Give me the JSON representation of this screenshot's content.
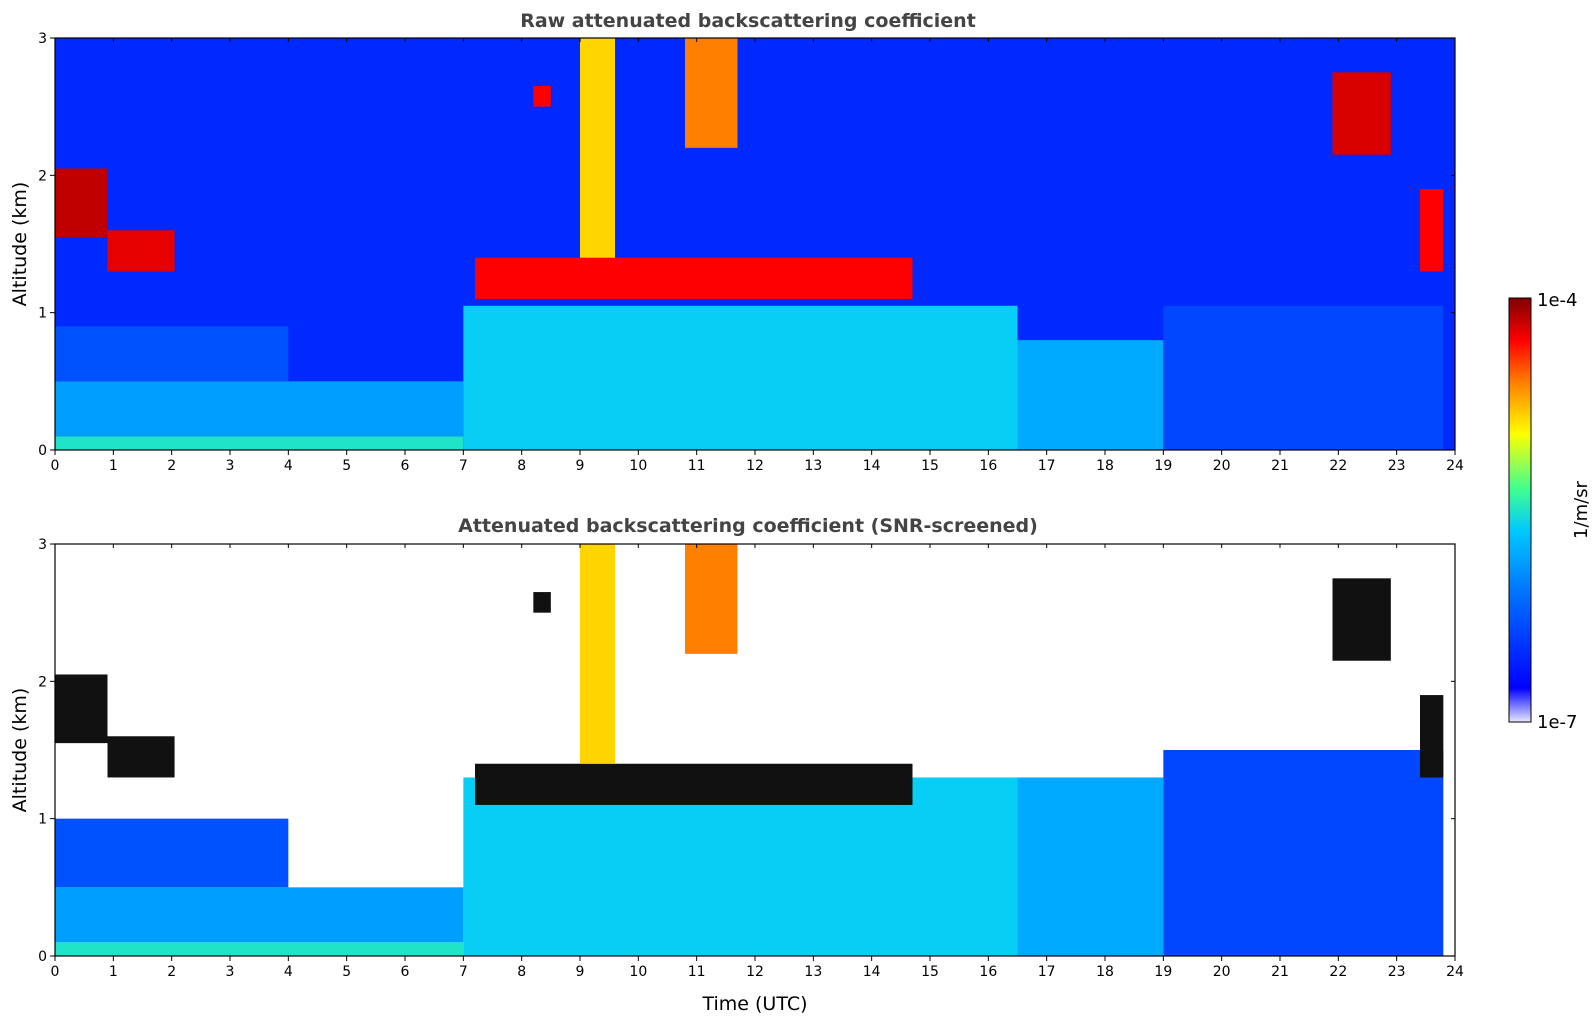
{
  "chart_data": [
    {
      "type": "heatmap",
      "title": "Raw attenuated backscattering coefficient",
      "xlabel": "",
      "ylabel": "Altitude (km)",
      "xlim": [
        0,
        24
      ],
      "ylim": [
        0,
        3
      ],
      "xticks": [
        "0",
        "1",
        "2",
        "3",
        "4",
        "5",
        "6",
        "7",
        "8",
        "9",
        "10",
        "11",
        "12",
        "13",
        "14",
        "15",
        "16",
        "17",
        "18",
        "19",
        "20",
        "21",
        "22",
        "23",
        "24"
      ],
      "yticks": [
        "0",
        "1",
        "2",
        "3"
      ],
      "layers": [
        {
          "x0": 0.0,
          "x1": 7.0,
          "y0": 0.0,
          "y1": 0.1,
          "level": 0.5
        },
        {
          "x0": 0.0,
          "x1": 7.0,
          "y0": 0.1,
          "y1": 0.5,
          "level": 0.38
        },
        {
          "x0": 0.0,
          "x1": 4.0,
          "y0": 0.5,
          "y1": 0.9,
          "level": 0.24
        },
        {
          "x0": 7.0,
          "x1": 16.5,
          "y0": 0.0,
          "y1": 1.05,
          "level": 0.46
        },
        {
          "x0": 16.5,
          "x1": 19.0,
          "y0": 0.0,
          "y1": 0.8,
          "level": 0.4
        },
        {
          "x0": 19.0,
          "x1": 23.8,
          "y0": 0.0,
          "y1": 1.05,
          "level": 0.22
        }
      ],
      "clouds": [
        {
          "x0": 0.0,
          "x1": 0.9,
          "y0": 1.55,
          "y1": 2.05,
          "level": 0.95
        },
        {
          "x0": 0.9,
          "x1": 2.05,
          "y0": 1.3,
          "y1": 1.6,
          "level": 0.92
        },
        {
          "x0": 7.2,
          "x1": 14.7,
          "y0": 1.1,
          "y1": 1.4,
          "level": 0.9
        },
        {
          "x0": 8.2,
          "x1": 8.5,
          "y0": 2.5,
          "y1": 2.65,
          "level": 0.9
        },
        {
          "x0": 9.0,
          "x1": 9.6,
          "y0": 1.4,
          "y1": 3.0,
          "level": 0.72
        },
        {
          "x0": 10.8,
          "x1": 11.7,
          "y0": 2.2,
          "y1": 3.0,
          "level": 0.8
        },
        {
          "x0": 21.9,
          "x1": 22.9,
          "y0": 2.15,
          "y1": 2.75,
          "level": 0.93
        },
        {
          "x0": 23.4,
          "x1": 23.8,
          "y0": 1.3,
          "y1": 1.9,
          "level": 0.9
        }
      ]
    },
    {
      "type": "heatmap",
      "title": "Attenuated backscattering coefficient (SNR-screened)",
      "xlabel": "Time (UTC)",
      "ylabel": "Altitude (km)",
      "xlim": [
        0,
        24
      ],
      "ylim": [
        0,
        3
      ],
      "xticks": [
        "0",
        "1",
        "2",
        "3",
        "4",
        "5",
        "6",
        "7",
        "8",
        "9",
        "10",
        "11",
        "12",
        "13",
        "14",
        "15",
        "16",
        "17",
        "18",
        "19",
        "20",
        "21",
        "22",
        "23",
        "24"
      ],
      "yticks": [
        "0",
        "1",
        "2",
        "3"
      ],
      "layers": [
        {
          "x0": 0.0,
          "x1": 7.0,
          "y0": 0.0,
          "y1": 0.1,
          "level": 0.5
        },
        {
          "x0": 0.0,
          "x1": 7.0,
          "y0": 0.1,
          "y1": 0.5,
          "level": 0.38
        },
        {
          "x0": 0.0,
          "x1": 4.0,
          "y0": 0.5,
          "y1": 1.0,
          "level": 0.24
        },
        {
          "x0": 7.0,
          "x1": 16.5,
          "y0": 0.0,
          "y1": 1.3,
          "level": 0.46
        },
        {
          "x0": 16.5,
          "x1": 19.0,
          "y0": 0.0,
          "y1": 1.3,
          "level": 0.4
        },
        {
          "x0": 19.0,
          "x1": 23.8,
          "y0": 0.0,
          "y1": 1.5,
          "level": 0.22
        }
      ],
      "clouds": [
        {
          "x0": 0.0,
          "x1": 0.9,
          "y0": 1.55,
          "y1": 2.05,
          "level": 0.97
        },
        {
          "x0": 0.9,
          "x1": 2.05,
          "y0": 1.3,
          "y1": 1.6,
          "level": 0.97
        },
        {
          "x0": 7.2,
          "x1": 14.7,
          "y0": 1.1,
          "y1": 1.4,
          "level": 0.97
        },
        {
          "x0": 8.2,
          "x1": 8.5,
          "y0": 2.5,
          "y1": 2.65,
          "level": 0.97
        },
        {
          "x0": 9.0,
          "x1": 9.6,
          "y0": 1.4,
          "y1": 3.0,
          "level": 0.72
        },
        {
          "x0": 10.8,
          "x1": 11.7,
          "y0": 2.2,
          "y1": 3.0,
          "level": 0.8
        },
        {
          "x0": 21.9,
          "x1": 22.9,
          "y0": 2.15,
          "y1": 2.75,
          "level": 0.97
        },
        {
          "x0": 23.4,
          "x1": 23.8,
          "y0": 1.3,
          "y1": 1.9,
          "level": 0.97
        }
      ]
    }
  ],
  "colorbar": {
    "label": "1/m/sr",
    "max_label": "1e-4",
    "min_label": "1e-7",
    "scale": "log",
    "range": [
      1e-07,
      0.0001
    ],
    "colors": [
      "#e8e8ff",
      "#0000ff",
      "#00c0ff",
      "#40ff90",
      "#ffff00",
      "#ff8000",
      "#ff0000",
      "#800000"
    ]
  }
}
